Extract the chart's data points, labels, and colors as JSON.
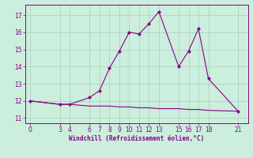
{
  "xlabel": "Windchill (Refroidissement éolien,°C)",
  "line_color": "#880088",
  "bg_color": "#cceedd",
  "grid_color": "#aaccbb",
  "temp_x": [
    0,
    3,
    4,
    6,
    7,
    8,
    9,
    10,
    11,
    12,
    13,
    15,
    16,
    17,
    18,
    21
  ],
  "temp_y": [
    12.0,
    11.8,
    11.8,
    12.2,
    12.6,
    13.9,
    14.9,
    16.0,
    15.9,
    16.5,
    17.2,
    14.0,
    14.9,
    16.2,
    13.3,
    11.4
  ],
  "wind_x": [
    0,
    3,
    4,
    6,
    7,
    8,
    9,
    10,
    11,
    12,
    13,
    15,
    16,
    17,
    18,
    21
  ],
  "wind_y": [
    12.0,
    11.8,
    11.8,
    11.7,
    11.7,
    11.7,
    11.65,
    11.65,
    11.6,
    11.6,
    11.55,
    11.55,
    11.5,
    11.5,
    11.45,
    11.4
  ],
  "xticks": [
    0,
    3,
    4,
    6,
    7,
    8,
    9,
    10,
    11,
    12,
    13,
    15,
    16,
    17,
    18,
    21
  ],
  "yticks": [
    11,
    12,
    13,
    14,
    15,
    16,
    17
  ],
  "ylim": [
    10.7,
    17.6
  ],
  "xlim": [
    -0.5,
    22.0
  ]
}
